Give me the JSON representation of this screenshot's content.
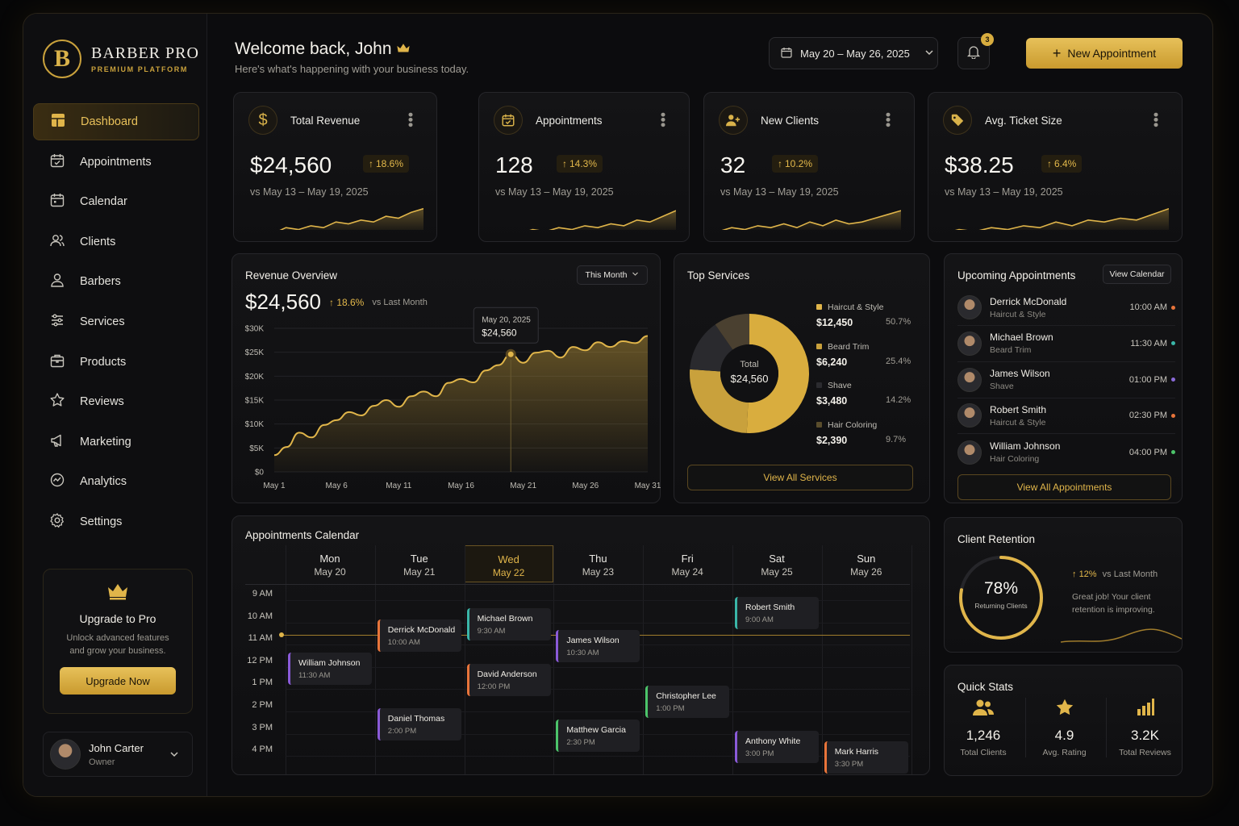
{
  "brand": {
    "title": "BARBER PRO",
    "subtitle": "PREMIUM PLATFORM",
    "mark": "B"
  },
  "nav": [
    {
      "label": "Dashboard",
      "icon": "dashboard-icon",
      "active": true
    },
    {
      "label": "Appointments",
      "icon": "calendar-check-icon"
    },
    {
      "label": "Calendar",
      "icon": "calendar-icon"
    },
    {
      "label": "Clients",
      "icon": "clients-icon"
    },
    {
      "label": "Barbers",
      "icon": "user-icon"
    },
    {
      "label": "Services",
      "icon": "sliders-icon"
    },
    {
      "label": "Products",
      "icon": "box-icon"
    },
    {
      "label": "Reviews",
      "icon": "star-icon"
    },
    {
      "label": "Marketing",
      "icon": "megaphone-icon"
    },
    {
      "label": "Analytics",
      "icon": "analytics-icon"
    },
    {
      "label": "Settings",
      "icon": "gear-icon"
    }
  ],
  "upgrade": {
    "title": "Upgrade to Pro",
    "text1": "Unlock advanced features",
    "text2": "and grow your business.",
    "button": "Upgrade Now"
  },
  "user": {
    "name": "John Carter",
    "role": "Owner"
  },
  "header": {
    "welcome": "Welcome back, John",
    "subtitle": "Here's what's happening with your business today.",
    "date_range": "May 20 – May 26, 2025",
    "notifications": "3",
    "new_button": "New Appointment"
  },
  "kpis": [
    {
      "label": "Total Revenue",
      "icon": "dollar-icon",
      "value": "$24,560",
      "change": "18.6%",
      "compare": "vs May 13 – May 19, 2025"
    },
    {
      "label": "Appointments",
      "icon": "calendar-icon",
      "value": "128",
      "change": "14.3%",
      "compare": "vs May 13 – May 19, 2025"
    },
    {
      "label": "New Clients",
      "icon": "add-user-icon",
      "value": "32",
      "change": "10.2%",
      "compare": "vs May 13 – May 19, 2025"
    },
    {
      "label": "Avg. Ticket Size",
      "icon": "tag-icon",
      "value": "$38.25",
      "change": "6.4%",
      "compare": "vs May 13 – May 19, 2025"
    }
  ],
  "revenue": {
    "title": "Revenue Overview",
    "period": "This Month",
    "value": "$24,560",
    "change": "18.6%",
    "compare": "vs Last Month",
    "tooltip_date": "May 20, 2025",
    "tooltip_value": "$24,560"
  },
  "chart_data": {
    "type": "area",
    "x_ticks": [
      "May 1",
      "May 6",
      "May 11",
      "May 16",
      "May 21",
      "May 26",
      "May 31"
    ],
    "y_ticks": [
      "$0",
      "$5K",
      "$10K",
      "$15K",
      "$20K",
      "$25K",
      "$30K"
    ],
    "ylim": [
      0,
      30000
    ],
    "x": [
      1,
      2,
      3,
      4,
      5,
      6,
      7,
      8,
      9,
      10,
      11,
      12,
      13,
      14,
      15,
      16,
      17,
      18,
      19,
      20,
      21,
      22,
      23,
      24,
      25,
      26,
      27,
      28,
      29,
      30,
      31
    ],
    "values": [
      3500,
      5200,
      8200,
      7200,
      9800,
      10800,
      12500,
      11800,
      13800,
      15000,
      13600,
      15800,
      16800,
      15800,
      18600,
      19400,
      18700,
      21200,
      22300,
      24560,
      22800,
      24900,
      25300,
      23900,
      26100,
      25400,
      27100,
      26100,
      27300,
      26900,
      28400
    ],
    "highlight": {
      "x": 20,
      "y": 24560
    }
  },
  "services": {
    "title": "Top Services",
    "center_label": "Total",
    "center_value": "$24,560",
    "button": "View All Services",
    "items": [
      {
        "name": "Haircut & Style",
        "amount": "$12,450",
        "pct": "50.7%",
        "share": 50.7,
        "color": "#e0b54a"
      },
      {
        "name": "Beard Trim",
        "amount": "$6,240",
        "pct": "25.4%",
        "share": 25.4,
        "color": "#c9a13c"
      },
      {
        "name": "Shave",
        "amount": "$3,480",
        "pct": "14.2%",
        "share": 14.2,
        "color": "#2b2b2f"
      },
      {
        "name": "Hair Coloring",
        "amount": "$2,390",
        "pct": "9.7%",
        "share": 9.7,
        "color": "#5a4d2c"
      }
    ]
  },
  "upcoming": {
    "title": "Upcoming Appointments",
    "view_button": "View Calendar",
    "all_button": "View All Appointments",
    "items": [
      {
        "name": "Derrick McDonald",
        "service": "Haircut & Style",
        "time": "10:00 AM",
        "color": "#e8743a"
      },
      {
        "name": "Michael Brown",
        "service": "Beard Trim",
        "time": "11:30 AM",
        "color": "#3ab6a8"
      },
      {
        "name": "James Wilson",
        "service": "Shave",
        "time": "01:00 PM",
        "color": "#8a6ad8"
      },
      {
        "name": "Robert Smith",
        "service": "Haircut & Style",
        "time": "02:30 PM",
        "color": "#e8743a"
      },
      {
        "name": "William Johnson",
        "service": "Hair Coloring",
        "time": "04:00 PM",
        "color": "#4cc46a"
      }
    ]
  },
  "calendar": {
    "title": "Appointments Calendar",
    "days": [
      {
        "d": "Mon",
        "dt": "May 20"
      },
      {
        "d": "Tue",
        "dt": "May 21"
      },
      {
        "d": "Wed",
        "dt": "May 22"
      },
      {
        "d": "Thu",
        "dt": "May 23"
      },
      {
        "d": "Fri",
        "dt": "May 24"
      },
      {
        "d": "Sat",
        "dt": "May 25"
      },
      {
        "d": "Sun",
        "dt": "May 26"
      }
    ],
    "times": [
      "9 AM",
      "10 AM",
      "11 AM",
      "12 PM",
      "1 PM",
      "2 PM",
      "3 PM",
      "4 PM"
    ],
    "events": [
      {
        "name": "William Johnson",
        "time": "11:30 AM",
        "day": 0,
        "hour": 11.5,
        "color": "#8a5ad8"
      },
      {
        "name": "Derrick McDonald",
        "time": "10:00 AM",
        "day": 1,
        "hour": 10,
        "color": "#e8743a"
      },
      {
        "name": "Daniel Thomas",
        "time": "2:00 PM",
        "day": 1,
        "hour": 14,
        "color": "#8a5ad8"
      },
      {
        "name": "Michael Brown",
        "time": "9:30 AM",
        "day": 2,
        "hour": 9.5,
        "color": "#3ab6a8"
      },
      {
        "name": "David Anderson",
        "time": "12:00 PM",
        "day": 2,
        "hour": 12,
        "color": "#e8743a"
      },
      {
        "name": "James Wilson",
        "time": "10:30 AM",
        "day": 3,
        "hour": 10.5,
        "color": "#8a5ad8"
      },
      {
        "name": "Matthew Garcia",
        "time": "2:30 PM",
        "day": 3,
        "hour": 14.5,
        "color": "#4cc46a"
      },
      {
        "name": "Christopher Lee",
        "time": "1:00 PM",
        "day": 4,
        "hour": 13,
        "color": "#4cc46a"
      },
      {
        "name": "Robert Smith",
        "time": "9:00 AM",
        "day": 5,
        "hour": 9,
        "color": "#3ab6a8"
      },
      {
        "name": "Anthony White",
        "time": "3:00 PM",
        "day": 5,
        "hour": 15,
        "color": "#8a5ad8"
      },
      {
        "name": "Mark Harris",
        "time": "3:30 PM",
        "day": 6,
        "hour": 15.5,
        "color": "#e8743a"
      }
    ]
  },
  "retention": {
    "title": "Client Retention",
    "value": "78%",
    "label": "Returning Clients",
    "percent": 78,
    "change": "12%",
    "compare": "vs Last Month",
    "text1": "Great job! Your client",
    "text2": "retention is improving."
  },
  "quick": {
    "title": "Quick Stats",
    "items": [
      {
        "value": "1,246",
        "label": "Total Clients",
        "icon": "clients-icon"
      },
      {
        "value": "4.9",
        "label": "Avg. Rating",
        "icon": "star-icon"
      },
      {
        "value": "3.2K",
        "label": "Total Reviews",
        "icon": "bar-chart-icon"
      }
    ]
  }
}
